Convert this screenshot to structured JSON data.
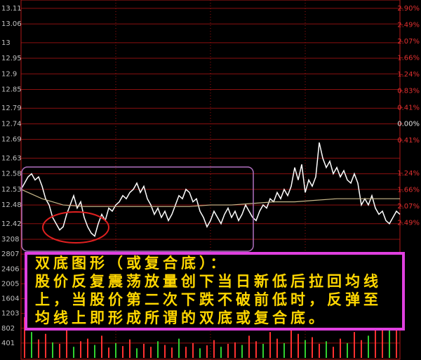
{
  "chart_data": [
    {
      "type": "line",
      "ylim": [
        12.37,
        13.13
      ],
      "yticks": [
        13.11,
        13.06,
        13.0,
        12.95,
        12.9,
        12.85,
        12.79,
        12.74,
        12.69,
        12.63,
        12.58,
        12.53,
        12.48,
        12.42
      ],
      "y2lim": [
        -2.9,
        3.06
      ],
      "y2ticks": [
        {
          "value": 2.9,
          "label": "2.90%"
        },
        {
          "value": 2.49,
          "label": "2.49%"
        },
        {
          "value": 2.07,
          "label": "2.07%"
        },
        {
          "value": 1.66,
          "label": "1.66%"
        },
        {
          "value": 1.24,
          "label": "1.24%"
        },
        {
          "value": 0.83,
          "label": "0.83%"
        },
        {
          "value": 0.41,
          "label": "0.41%"
        },
        {
          "value": 0.0,
          "label": "0.00%"
        },
        {
          "value": -0.41,
          "label": "0.41%"
        },
        {
          "value": -1.24,
          "label": "1.24%"
        },
        {
          "value": -1.66,
          "label": "1.66%"
        },
        {
          "value": -2.07,
          "label": "2.07%"
        },
        {
          "value": -2.49,
          "label": "2.49%"
        }
      ],
      "grid": true,
      "series": [
        {
          "color": "#ffffff",
          "values": [
            12.53,
            12.55,
            12.57,
            12.58,
            12.56,
            12.57,
            12.54,
            12.5,
            12.48,
            12.44,
            12.42,
            12.4,
            12.41,
            12.45,
            12.48,
            12.51,
            12.47,
            12.49,
            12.44,
            12.41,
            12.39,
            12.38,
            12.42,
            12.45,
            12.43,
            12.47,
            12.46,
            12.48,
            12.49,
            12.51,
            12.5,
            12.52,
            12.53,
            12.55,
            12.52,
            12.54,
            12.5,
            12.48,
            12.45,
            12.47,
            12.44,
            12.46,
            12.43,
            12.45,
            12.48,
            12.51,
            12.5,
            12.53,
            12.52,
            12.49,
            12.5,
            12.46,
            12.44,
            12.41,
            12.43,
            12.46,
            12.44,
            12.42,
            12.45,
            12.47,
            12.44,
            12.46,
            12.43,
            12.45,
            12.48,
            12.46,
            12.44,
            12.43,
            12.46,
            12.48,
            12.47,
            12.5,
            12.49,
            12.52,
            12.5,
            12.53,
            12.51,
            12.54,
            12.6,
            12.56,
            12.61,
            12.52,
            12.56,
            12.54,
            12.57,
            12.68,
            12.63,
            12.6,
            12.62,
            12.58,
            12.6,
            12.57,
            12.59,
            12.56,
            12.55,
            12.58,
            12.55,
            12.48,
            12.5,
            12.48,
            12.51,
            12.47,
            12.45,
            12.46,
            12.43,
            12.42,
            12.44,
            12.46,
            12.45
          ]
        },
        {
          "color": "#c8b88a",
          "values": [
            12.53,
            12.5,
            12.48,
            12.475,
            12.475,
            12.475,
            12.475,
            12.475,
            12.475,
            12.48,
            12.48,
            12.485,
            12.49,
            12.49,
            12.495,
            12.5,
            12.5,
            12.5,
            12.5
          ]
        }
      ],
      "annotation": {
        "title": "双底图形（或复合底）：",
        "lines": [
          "股价反复震荡放量创下当日新低后拉回均线",
          "上，当股价第二次下跌不破前低时，反弹至",
          "均线上即形成所谓的双底或复合底。"
        ]
      }
    },
    {
      "type": "bar",
      "ylim": [
        0,
        3208
      ],
      "yticks": [
        3208,
        2807,
        2406,
        2005,
        1604,
        1203,
        802,
        401
      ],
      "series": [
        {
          "color": "#ff3030",
          "values": [
            1100,
            null,
            500,
            650,
            null,
            380,
            900,
            null,
            450,
            520,
            null,
            600,
            280,
            null,
            320,
            500,
            null,
            380,
            300,
            null,
            350,
            280,
            null,
            300,
            400,
            null,
            340,
            480,
            null,
            380,
            420,
            null,
            600,
            450,
            null,
            700,
            520,
            null,
            900,
            650,
            null,
            560,
            380,
            null,
            300,
            520,
            null,
            700,
            480,
            null,
            900,
            1300,
            null,
            1500
          ]
        },
        {
          "color": "#30d030",
          "values": [
            null,
            700,
            null,
            null,
            420,
            null,
            null,
            300,
            null,
            null,
            350,
            null,
            null,
            400,
            null,
            null,
            260,
            null,
            null,
            450,
            null,
            null,
            520,
            null,
            null,
            260,
            null,
            null,
            300,
            null,
            null,
            350,
            null,
            null,
            380,
            null,
            null,
            400,
            null,
            null,
            480,
            null,
            null,
            450,
            null,
            null,
            400,
            null,
            null,
            600,
            null,
            null,
            800,
            null
          ]
        }
      ]
    }
  ]
}
